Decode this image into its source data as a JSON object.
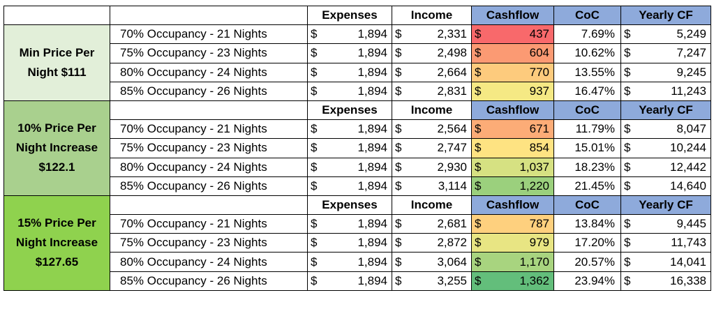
{
  "headers": {
    "expenses": "Expenses",
    "income": "Income",
    "cashflow": "Cashflow",
    "coc": "CoC",
    "yearly": "Yearly CF"
  },
  "currency_symbol": "$",
  "colors": {
    "group_0_bg": "#e2efd9",
    "group_1_bg": "#a9d08e",
    "group_2_bg": "#8fd24e",
    "header_blue": "#8eaadb"
  },
  "groups": [
    {
      "label": "Min Price Per Night $111",
      "rows": [
        {
          "scenario": "70% Occupancy - 21 Nights",
          "expenses": "1,894",
          "income": "2,331",
          "cashflow": "437",
          "cashflow_color": "#f8696b",
          "coc": "7.69%",
          "yearly": "5,249"
        },
        {
          "scenario": "75% Occupancy - 23 Nights",
          "expenses": "1,894",
          "income": "2,498",
          "cashflow": "604",
          "cashflow_color": "#fb9a73",
          "coc": "10.62%",
          "yearly": "7,247"
        },
        {
          "scenario": "80% Occupancy - 24 Nights",
          "expenses": "1,894",
          "income": "2,664",
          "cashflow": "770",
          "cashflow_color": "#fdcb7d",
          "coc": "13.55%",
          "yearly": "9,245"
        },
        {
          "scenario": "85% Occupancy - 26 Nights",
          "expenses": "1,894",
          "income": "2,831",
          "cashflow": "937",
          "cashflow_color": "#f5e984",
          "coc": "16.47%",
          "yearly": "11,243"
        }
      ]
    },
    {
      "label": "10% Price Per Night Increase $122.1",
      "rows": [
        {
          "scenario": "70% Occupancy - 21 Nights",
          "expenses": "1,894",
          "income": "2,564",
          "cashflow": "671",
          "cashflow_color": "#fcac77",
          "coc": "11.79%",
          "yearly": "8,047"
        },
        {
          "scenario": "75% Occupancy - 23 Nights",
          "expenses": "1,894",
          "income": "2,747",
          "cashflow": "854",
          "cashflow_color": "#fee382",
          "coc": "15.01%",
          "yearly": "10,244"
        },
        {
          "scenario": "80% Occupancy - 24 Nights",
          "expenses": "1,894",
          "income": "2,930",
          "cashflow": "1,037",
          "cashflow_color": "#d6e182",
          "coc": "18.23%",
          "yearly": "12,442"
        },
        {
          "scenario": "85% Occupancy - 26 Nights",
          "expenses": "1,894",
          "income": "3,114",
          "cashflow": "1,220",
          "cashflow_color": "#9bd07d",
          "coc": "21.45%",
          "yearly": "14,640"
        }
      ]
    },
    {
      "label": "15% Price Per Night Increase $127.65",
      "rows": [
        {
          "scenario": "70% Occupancy - 21 Nights",
          "expenses": "1,894",
          "income": "2,681",
          "cashflow": "787",
          "cashflow_color": "#fed07e",
          "coc": "13.84%",
          "yearly": "9,445"
        },
        {
          "scenario": "75% Occupancy - 23 Nights",
          "expenses": "1,894",
          "income": "2,872",
          "cashflow": "979",
          "cashflow_color": "#e8e583",
          "coc": "17.20%",
          "yearly": "11,743"
        },
        {
          "scenario": "80% Occupancy - 24 Nights",
          "expenses": "1,894",
          "income": "3,064",
          "cashflow": "1,170",
          "cashflow_color": "#a8d47f",
          "coc": "20.57%",
          "yearly": "14,041"
        },
        {
          "scenario": "85% Occupancy - 26 Nights",
          "expenses": "1,894",
          "income": "3,255",
          "cashflow": "1,362",
          "cashflow_color": "#63be7b",
          "coc": "23.94%",
          "yearly": "16,338"
        }
      ]
    }
  ]
}
